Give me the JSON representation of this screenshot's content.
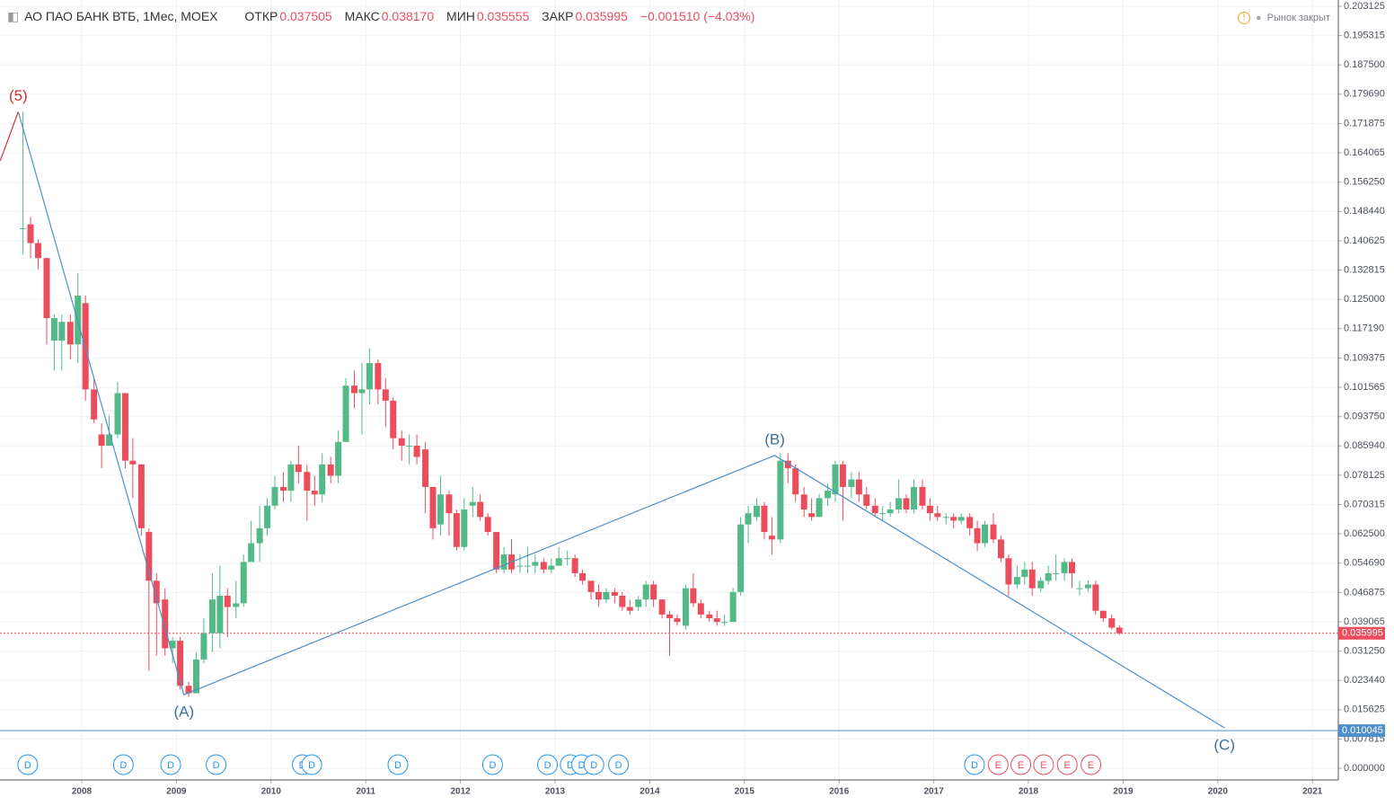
{
  "header": {
    "title": "АО ПАО БАНК ВТБ, 1Мес, MOEX",
    "open_label": "ОТКР",
    "open": "0.037505",
    "high_label": "МАКС",
    "high": "0.038170",
    "low_label": "МИН",
    "low": "0.035555",
    "close_label": "ЗАКР",
    "close": "0.035995",
    "change": "−0.001510 (−4.03%)",
    "status": "Рынок закрыт"
  },
  "chart_data": {
    "type": "candlestick",
    "up_color": "#53b987",
    "down_color": "#eb4d5c",
    "xlim": [
      2007.137,
      2021.273
    ],
    "ylim": [
      -0.0031,
      0.2048
    ],
    "grid": true,
    "xticks": [
      2008,
      2009,
      2010,
      2011,
      2012,
      2013,
      2014,
      2015,
      2016,
      2017,
      2018,
      2019,
      2020,
      2021
    ],
    "yticks": [
      {
        "value": 0,
        "label": "0.000000"
      },
      {
        "value": 0.007815,
        "label": "0.007815"
      },
      {
        "value": 0.015625,
        "label": "0.015625"
      },
      {
        "value": 0.02344,
        "label": "0.023440"
      },
      {
        "value": 0.03125,
        "label": "0.031250"
      },
      {
        "value": 0.039065,
        "label": "0.039065"
      },
      {
        "value": 0.046875,
        "label": "0.046875"
      },
      {
        "value": 0.05469,
        "label": "0.054690"
      },
      {
        "value": 0.0625,
        "label": "0.062500"
      },
      {
        "value": 0.070315,
        "label": "0.070315"
      },
      {
        "value": 0.078125,
        "label": "0.078125"
      },
      {
        "value": 0.08594,
        "label": "0.085940"
      },
      {
        "value": 0.09375,
        "label": "0.093750"
      },
      {
        "value": 0.101565,
        "label": "0.101565"
      },
      {
        "value": 0.109375,
        "label": "0.109375"
      },
      {
        "value": 0.11719,
        "label": "0.117190"
      },
      {
        "value": 0.125,
        "label": "0.125000"
      },
      {
        "value": 0.132815,
        "label": "0.132815"
      },
      {
        "value": 0.140625,
        "label": "0.140625"
      },
      {
        "value": 0.14844,
        "label": "0.148440"
      },
      {
        "value": 0.15625,
        "label": "0.156250"
      },
      {
        "value": 0.164065,
        "label": "0.164065"
      },
      {
        "value": 0.171875,
        "label": "0.171875"
      },
      {
        "value": 0.17969,
        "label": "0.179690"
      },
      {
        "value": 0.1875,
        "label": "0.187500"
      },
      {
        "value": 0.195315,
        "label": "0.195315"
      },
      {
        "value": 0.203125,
        "label": "0.203125"
      }
    ],
    "x": [
      2007.38,
      2007.46,
      2007.54,
      2007.63,
      2007.71,
      2007.79,
      2007.88,
      2007.96,
      2008.04,
      2008.13,
      2008.21,
      2008.29,
      2008.38,
      2008.46,
      2008.54,
      2008.63,
      2008.71,
      2008.79,
      2008.88,
      2008.96,
      2009.04,
      2009.13,
      2009.21,
      2009.29,
      2009.38,
      2009.46,
      2009.54,
      2009.63,
      2009.71,
      2009.79,
      2009.88,
      2009.96,
      2010.04,
      2010.13,
      2010.21,
      2010.29,
      2010.38,
      2010.46,
      2010.54,
      2010.63,
      2010.71,
      2010.79,
      2010.88,
      2010.96,
      2011.04,
      2011.13,
      2011.21,
      2011.29,
      2011.38,
      2011.46,
      2011.54,
      2011.63,
      2011.71,
      2011.79,
      2011.88,
      2011.96,
      2012.04,
      2012.13,
      2012.21,
      2012.29,
      2012.38,
      2012.46,
      2012.54,
      2012.63,
      2012.71,
      2012.79,
      2012.88,
      2012.96,
      2013.04,
      2013.13,
      2013.21,
      2013.29,
      2013.38,
      2013.46,
      2013.54,
      2013.63,
      2013.71,
      2013.79,
      2013.88,
      2013.96,
      2014.04,
      2014.13,
      2014.21,
      2014.29,
      2014.38,
      2014.46,
      2014.54,
      2014.63,
      2014.71,
      2014.79,
      2014.88,
      2014.96,
      2015.04,
      2015.13,
      2015.21,
      2015.29,
      2015.38,
      2015.46,
      2015.54,
      2015.63,
      2015.71,
      2015.79,
      2015.88,
      2015.96,
      2016.04,
      2016.13,
      2016.21,
      2016.29,
      2016.38,
      2016.46,
      2016.54,
      2016.63,
      2016.71,
      2016.79,
      2016.88,
      2016.96,
      2017.04,
      2017.13,
      2017.21,
      2017.29,
      2017.38,
      2017.46,
      2017.54,
      2017.63,
      2017.71,
      2017.79,
      2017.88,
      2017.96,
      2018.04,
      2018.13,
      2018.21,
      2018.29,
      2018.38,
      2018.46,
      2018.54,
      2018.63,
      2018.71,
      2018.79,
      2018.88,
      2018.96
    ],
    "open": [
      0.144,
      0.145,
      0.14,
      0.136,
      0.114,
      0.114,
      0.119,
      0.113,
      0.124,
      0.101,
      0.089,
      0.086,
      0.089,
      0.1,
      0.082,
      0.081,
      0.063,
      0.05,
      0.045,
      0.032,
      0.034,
      0.022,
      0.02,
      0.029,
      0.036,
      0.036,
      0.046,
      0.043,
      0.044,
      0.055,
      0.06,
      0.064,
      0.07,
      0.075,
      0.074,
      0.081,
      0.079,
      0.074,
      0.073,
      0.081,
      0.078,
      0.087,
      0.102,
      0.1,
      0.101,
      0.108,
      0.101,
      0.098,
      0.088,
      0.086,
      0.086,
      0.085,
      0.075,
      0.065,
      0.073,
      0.068,
      0.059,
      0.07,
      0.071,
      0.067,
      0.063,
      0.053,
      0.057,
      0.054,
      0.054,
      0.054,
      0.055,
      0.053,
      0.054,
      0.056,
      0.056,
      0.052,
      0.05,
      0.047,
      0.045,
      0.047,
      0.046,
      0.043,
      0.043,
      0.045,
      0.049,
      0.045,
      0.041,
      0.04,
      0.038,
      0.048,
      0.044,
      0.041,
      0.04,
      0.039,
      0.039,
      0.047,
      0.065,
      0.067,
      0.07,
      0.062,
      0.061,
      0.082,
      0.08,
      0.073,
      0.068,
      0.067,
      0.072,
      0.073,
      0.081,
      0.075,
      0.077,
      0.073,
      0.07,
      0.068,
      0.068,
      0.069,
      0.072,
      0.069,
      0.075,
      0.07,
      0.068,
      0.067,
      0.067,
      0.066,
      0.067,
      0.064,
      0.06,
      0.065,
      0.061,
      0.056,
      0.049,
      0.051,
      0.053,
      0.048,
      0.05,
      0.052,
      0.052,
      0.055,
      0.048,
      0.048,
      0.049,
      0.042,
      0.04,
      0.037505
    ],
    "high": [
      0.175,
      0.147,
      0.141,
      0.136,
      0.121,
      0.121,
      0.121,
      0.132,
      0.126,
      0.104,
      0.092,
      0.094,
      0.103,
      0.1,
      0.088,
      0.081,
      0.064,
      0.052,
      0.048,
      0.035,
      0.035,
      0.023,
      0.031,
      0.04,
      0.052,
      0.054,
      0.048,
      0.05,
      0.057,
      0.066,
      0.07,
      0.072,
      0.078,
      0.079,
      0.082,
      0.086,
      0.081,
      0.078,
      0.084,
      0.083,
      0.09,
      0.104,
      0.106,
      0.108,
      0.112,
      0.109,
      0.104,
      0.099,
      0.09,
      0.089,
      0.089,
      0.087,
      0.075,
      0.078,
      0.074,
      0.069,
      0.072,
      0.075,
      0.073,
      0.068,
      0.063,
      0.059,
      0.061,
      0.057,
      0.059,
      0.057,
      0.056,
      0.056,
      0.059,
      0.058,
      0.057,
      0.053,
      0.05,
      0.049,
      0.048,
      0.048,
      0.047,
      0.045,
      0.046,
      0.05,
      0.05,
      0.045,
      0.042,
      0.041,
      0.049,
      0.052,
      0.045,
      0.042,
      0.042,
      0.041,
      0.048,
      0.067,
      0.07,
      0.072,
      0.071,
      0.067,
      0.084,
      0.084,
      0.081,
      0.075,
      0.072,
      0.073,
      0.076,
      0.082,
      0.082,
      0.079,
      0.079,
      0.075,
      0.072,
      0.07,
      0.071,
      0.077,
      0.073,
      0.077,
      0.077,
      0.072,
      0.07,
      0.068,
      0.068,
      0.068,
      0.068,
      0.066,
      0.066,
      0.068,
      0.062,
      0.057,
      0.054,
      0.055,
      0.055,
      0.051,
      0.054,
      0.057,
      0.056,
      0.056,
      0.05,
      0.05,
      0.05,
      0.042,
      0.041,
      0.03817
    ],
    "low": [
      0.137,
      0.136,
      0.133,
      0.113,
      0.106,
      0.106,
      0.109,
      0.108,
      0.098,
      0.092,
      0.08,
      0.086,
      0.088,
      0.08,
      0.072,
      0.062,
      0.026,
      0.03,
      0.03,
      0.028,
      0.021,
      0.019,
      0.02,
      0.028,
      0.031,
      0.032,
      0.035,
      0.04,
      0.043,
      0.055,
      0.055,
      0.062,
      0.069,
      0.071,
      0.071,
      0.076,
      0.066,
      0.07,
      0.071,
      0.076,
      0.076,
      0.087,
      0.096,
      0.089,
      0.097,
      0.097,
      0.091,
      0.085,
      0.082,
      0.081,
      0.081,
      0.068,
      0.061,
      0.062,
      0.062,
      0.058,
      0.058,
      0.067,
      0.066,
      0.062,
      0.052,
      0.052,
      0.052,
      0.052,
      0.052,
      0.052,
      0.052,
      0.052,
      0.054,
      0.054,
      0.051,
      0.049,
      0.045,
      0.043,
      0.044,
      0.044,
      0.042,
      0.041,
      0.042,
      0.043,
      0.043,
      0.04,
      0.03,
      0.038,
      0.037,
      0.043,
      0.04,
      0.039,
      0.038,
      0.038,
      0.039,
      0.046,
      0.06,
      0.066,
      0.061,
      0.057,
      0.06,
      0.076,
      0.071,
      0.067,
      0.066,
      0.067,
      0.07,
      0.071,
      0.066,
      0.072,
      0.071,
      0.069,
      0.067,
      0.066,
      0.067,
      0.068,
      0.068,
      0.068,
      0.069,
      0.066,
      0.066,
      0.065,
      0.064,
      0.065,
      0.062,
      0.058,
      0.059,
      0.06,
      0.055,
      0.046,
      0.048,
      0.049,
      0.046,
      0.047,
      0.049,
      0.05,
      0.05,
      0.048,
      0.046,
      0.047,
      0.041,
      0.039,
      0.037,
      0.035555
    ],
    "close": [
      0.144,
      0.14,
      0.136,
      0.12,
      0.12,
      0.119,
      0.113,
      0.126,
      0.101,
      0.093,
      0.086,
      0.089,
      0.1,
      0.082,
      0.081,
      0.064,
      0.05,
      0.044,
      0.032,
      0.034,
      0.022,
      0.02,
      0.029,
      0.036,
      0.045,
      0.046,
      0.043,
      0.044,
      0.055,
      0.06,
      0.064,
      0.07,
      0.075,
      0.074,
      0.081,
      0.079,
      0.074,
      0.073,
      0.081,
      0.078,
      0.087,
      0.102,
      0.1,
      0.101,
      0.108,
      0.101,
      0.098,
      0.088,
      0.086,
      0.086,
      0.083,
      0.075,
      0.064,
      0.073,
      0.068,
      0.059,
      0.069,
      0.071,
      0.067,
      0.063,
      0.053,
      0.057,
      0.053,
      0.054,
      0.054,
      0.055,
      0.053,
      0.054,
      0.056,
      0.056,
      0.052,
      0.05,
      0.047,
      0.045,
      0.047,
      0.046,
      0.043,
      0.042,
      0.045,
      0.049,
      0.045,
      0.041,
      0.04,
      0.039,
      0.048,
      0.044,
      0.041,
      0.04,
      0.039,
      0.039,
      0.047,
      0.065,
      0.068,
      0.07,
      0.063,
      0.061,
      0.082,
      0.08,
      0.073,
      0.069,
      0.067,
      0.072,
      0.074,
      0.081,
      0.075,
      0.077,
      0.073,
      0.07,
      0.068,
      0.068,
      0.069,
      0.072,
      0.069,
      0.075,
      0.07,
      0.068,
      0.067,
      0.067,
      0.066,
      0.067,
      0.064,
      0.06,
      0.065,
      0.061,
      0.056,
      0.049,
      0.051,
      0.053,
      0.048,
      0.05,
      0.052,
      0.052,
      0.055,
      0.052,
      0.048,
      0.049,
      0.042,
      0.04,
      0.0375,
      0.035995
    ],
    "last_price": {
      "value": 0.035995,
      "label": "0.035995",
      "color": "#eb4d5c"
    },
    "target_line": {
      "value": 0.010045,
      "label": "0.010045",
      "color": "#4d8fca"
    },
    "lead_in": {
      "x": [
        2007.14,
        2007.33
      ],
      "y": [
        0.162,
        0.175
      ],
      "color": "#d32f2f"
    },
    "wave": {
      "x": [
        2007.33,
        2009.08,
        2015.32,
        2020.07
      ],
      "y": [
        0.175,
        0.0196,
        0.0834,
        0.0108
      ],
      "labels": [
        "(5)",
        "(A)",
        "(B)",
        "(C)"
      ],
      "color": "#4d8fca"
    },
    "events": [
      {
        "label": "D",
        "x": 2007.43
      },
      {
        "label": "D",
        "x": 2008.44
      },
      {
        "label": "D",
        "x": 2008.94
      },
      {
        "label": "D",
        "x": 2009.42
      },
      {
        "label": "D",
        "x": 2010.33
      },
      {
        "label": "D",
        "x": 2010.43
      },
      {
        "label": "D",
        "x": 2011.34
      },
      {
        "label": "D",
        "x": 2012.34
      },
      {
        "label": "D",
        "x": 2012.92
      },
      {
        "label": "D",
        "x": 2013.16
      },
      {
        "label": "D",
        "x": 2013.28
      },
      {
        "label": "D",
        "x": 2013.41
      },
      {
        "label": "D",
        "x": 2013.67
      },
      {
        "label": "D",
        "x": 2017.43
      },
      {
        "label": "E",
        "x": 2017.68
      },
      {
        "label": "E",
        "x": 2017.92
      },
      {
        "label": "E",
        "x": 2018.16
      },
      {
        "label": "E",
        "x": 2018.41
      },
      {
        "label": "E",
        "x": 2018.66
      }
    ],
    "event_colors": {
      "D": "#2196f3",
      "E": "#eb4d5c"
    }
  }
}
